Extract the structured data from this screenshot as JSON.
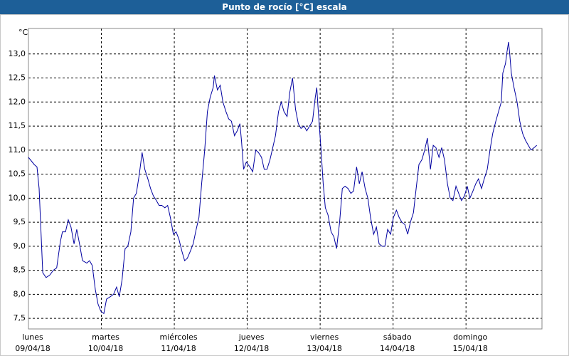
{
  "chart_data": {
    "type": "line",
    "title": "Punto de rocío [°C] escala",
    "y_label": "°C",
    "xlim": [
      0,
      169
    ],
    "xticks": [
      {
        "value": 0,
        "label": "lunes"
      },
      {
        "value": 24,
        "label": "martes"
      },
      {
        "value": 48,
        "label": "miércoles"
      },
      {
        "value": 72,
        "label": "jueves"
      },
      {
        "value": 96,
        "label": "viernes"
      },
      {
        "value": 120,
        "label": "sábado"
      },
      {
        "value": 144,
        "label": "domingo"
      }
    ],
    "xtick_dates": [
      "09/04/18",
      "10/04/18",
      "11/04/18",
      "12/04/18",
      "13/04/18",
      "14/04/18",
      "15/04/18"
    ],
    "ylim": [
      7.28,
      13.53
    ],
    "yticks": [
      {
        "value": 7.5,
        "label": "7,5"
      },
      {
        "value": 8.0,
        "label": "8,0"
      },
      {
        "value": 8.5,
        "label": "8,5"
      },
      {
        "value": 9.0,
        "label": "9,0"
      },
      {
        "value": 9.5,
        "label": "9,5"
      },
      {
        "value": 10.0,
        "label": "10,0"
      },
      {
        "value": 10.5,
        "label": "10,5"
      },
      {
        "value": 11.0,
        "label": "11,0"
      },
      {
        "value": 11.5,
        "label": "11,5"
      },
      {
        "value": 12.0,
        "label": "12,0"
      },
      {
        "value": 12.5,
        "label": "12,5"
      },
      {
        "value": 13.0,
        "label": "13,0"
      }
    ],
    "grid": true,
    "color": "#0000a0",
    "x": [
      0,
      1.9,
      2.8,
      3.5,
      4.7,
      5.8,
      7.0,
      8.2,
      9.3,
      10.5,
      11.2,
      12.2,
      13.1,
      14.0,
      15.0,
      15.9,
      16.8,
      17.8,
      19.2,
      20.1,
      21.0,
      22.0,
      22.9,
      23.8,
      24.8,
      25.7,
      26.9,
      28.0,
      29.0,
      29.9,
      30.8,
      31.8,
      32.7,
      33.7,
      34.6,
      35.5,
      36.5,
      37.4,
      38.3,
      39.3,
      40.2,
      41.1,
      42.1,
      43.0,
      43.9,
      44.9,
      45.8,
      46.7,
      47.7,
      48.6,
      49.5,
      50.5,
      51.4,
      52.3,
      53.3,
      54.2,
      55.2,
      56.1,
      57.0,
      58.0,
      58.9,
      59.8,
      60.8,
      61.2,
      62.2,
      63.1,
      64.0,
      65.0,
      65.9,
      66.8,
      67.8,
      68.7,
      69.6,
      70.1,
      70.8,
      71.7,
      72.9,
      73.8,
      74.8,
      75.7,
      76.7,
      77.6,
      78.5,
      79.5,
      80.4,
      81.3,
      82.3,
      83.2,
      84.1,
      85.1,
      86.0,
      86.9,
      87.9,
      88.8,
      89.7,
      90.7,
      91.6,
      92.5,
      93.5,
      94.4,
      94.9,
      95.3,
      96.3,
      97.0,
      97.7,
      98.6,
      99.6,
      100.5,
      101.4,
      102.4,
      103.3,
      104.2,
      105.2,
      106.1,
      107.0,
      108.0,
      108.9,
      109.8,
      110.8,
      111.7,
      112.6,
      113.6,
      114.5,
      115.4,
      116.4,
      117.3,
      118.2,
      119.2,
      120.1,
      121.1,
      122.0,
      122.9,
      123.9,
      124.8,
      125.7,
      126.7,
      127.6,
      128.5,
      129.5,
      130.4,
      131.3,
      132.3,
      133.2,
      134.1,
      135.1,
      136.0,
      136.9,
      137.9,
      138.8,
      139.7,
      140.7,
      141.6,
      142.5,
      143.5,
      144.4,
      145.3,
      146.3,
      147.2,
      148.1,
      149.1,
      150.0,
      151.0,
      151.9,
      152.8,
      153.8,
      154.7,
      155.6,
      156.1,
      157.0,
      157.5,
      158.0,
      158.4,
      158.9,
      159.8,
      160.8,
      161.7,
      162.6,
      163.6,
      164.5,
      165.4,
      166.4,
      167.3
    ],
    "values": [
      10.85,
      10.7,
      10.65,
      10.2,
      8.45,
      8.35,
      8.4,
      8.5,
      8.55,
      9.1,
      9.3,
      9.3,
      9.55,
      9.4,
      9.05,
      9.35,
      9.05,
      8.7,
      8.65,
      8.7,
      8.6,
      8.1,
      7.8,
      7.65,
      7.6,
      7.9,
      7.95,
      8.0,
      8.15,
      7.95,
      8.3,
      8.95,
      9.0,
      9.3,
      10.0,
      10.1,
      10.5,
      10.95,
      10.6,
      10.4,
      10.2,
      10.05,
      9.95,
      9.85,
      9.85,
      9.8,
      9.85,
      9.6,
      9.25,
      9.3,
      9.15,
      8.9,
      8.7,
      8.75,
      8.9,
      9.05,
      9.35,
      9.6,
      10.3,
      11.0,
      11.8,
      12.1,
      12.3,
      12.55,
      12.25,
      12.35,
      12.0,
      11.8,
      11.65,
      11.6,
      11.3,
      11.4,
      11.55,
      11.2,
      10.6,
      10.75,
      10.65,
      10.55,
      11.0,
      10.95,
      10.85,
      10.6,
      10.6,
      10.8,
      11.05,
      11.3,
      11.8,
      12.0,
      11.8,
      11.7,
      12.2,
      12.5,
      11.85,
      11.55,
      11.45,
      11.5,
      11.4,
      11.5,
      11.6,
      12.1,
      12.3,
      11.9,
      11.0,
      10.3,
      9.8,
      9.65,
      9.3,
      9.2,
      8.95,
      9.5,
      10.2,
      10.25,
      10.2,
      10.1,
      10.15,
      10.65,
      10.3,
      10.55,
      10.2,
      10.0,
      9.6,
      9.25,
      9.4,
      9.05,
      9.0,
      9.0,
      9.35,
      9.25,
      9.6,
      9.75,
      9.6,
      9.5,
      9.45,
      9.25,
      9.5,
      9.7,
      10.2,
      10.7,
      10.8,
      11.0,
      11.25,
      10.6,
      11.1,
      11.05,
      10.85,
      11.05,
      10.8,
      10.3,
      10.0,
      9.95,
      10.25,
      10.1,
      9.95,
      10.05,
      10.25,
      10.0,
      10.15,
      10.3,
      10.4,
      10.2,
      10.4,
      10.6,
      11.0,
      11.35,
      11.6,
      11.8,
      12.0,
      12.6,
      12.8,
      13.05,
      13.25,
      13.0,
      12.6,
      12.3,
      12.0,
      11.6,
      11.35,
      11.2,
      11.1,
      11.0,
      11.05,
      11.1
    ]
  }
}
